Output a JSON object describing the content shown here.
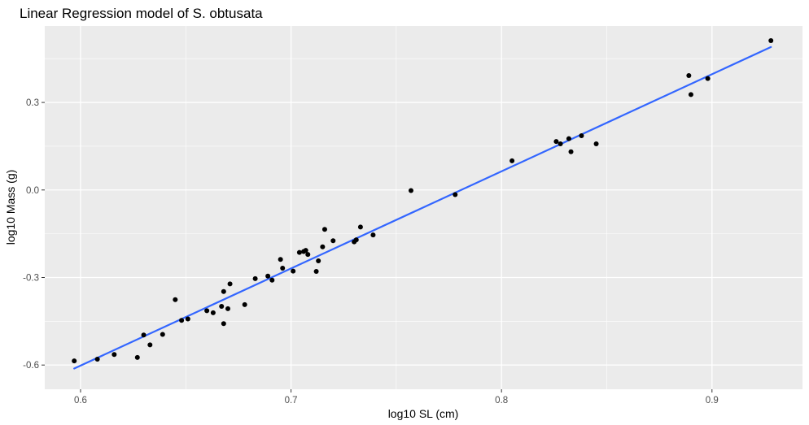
{
  "chart_data": {
    "type": "scatter",
    "title": "Linear Regression model of S. obtusata",
    "xlabel": "log10 SL (cm)",
    "ylabel": "log10 Mass (g)",
    "xlim": [
      0.583,
      0.943
    ],
    "ylim": [
      -0.683,
      0.562
    ],
    "x_ticks": [
      0.6,
      0.7,
      0.8,
      0.9
    ],
    "x_tick_labels": [
      "0.6",
      "0.7",
      "0.8",
      "0.9"
    ],
    "y_ticks": [
      -0.6,
      -0.3,
      0.0,
      0.3
    ],
    "y_tick_labels": [
      "-0.6",
      "-0.3",
      "0.0",
      "0.3"
    ],
    "grid": true,
    "background_color": "#ebebeb",
    "grid_color": "#ffffff",
    "point_color": "#000000",
    "line_color": "#3366ff",
    "points": [
      {
        "x": 0.597,
        "y": -0.586
      },
      {
        "x": 0.608,
        "y": -0.58
      },
      {
        "x": 0.616,
        "y": -0.564
      },
      {
        "x": 0.627,
        "y": -0.574
      },
      {
        "x": 0.63,
        "y": -0.497
      },
      {
        "x": 0.633,
        "y": -0.531
      },
      {
        "x": 0.639,
        "y": -0.495
      },
      {
        "x": 0.645,
        "y": -0.376
      },
      {
        "x": 0.648,
        "y": -0.447
      },
      {
        "x": 0.651,
        "y": -0.442
      },
      {
        "x": 0.66,
        "y": -0.414
      },
      {
        "x": 0.663,
        "y": -0.421
      },
      {
        "x": 0.667,
        "y": -0.399
      },
      {
        "x": 0.668,
        "y": -0.348
      },
      {
        "x": 0.668,
        "y": -0.458
      },
      {
        "x": 0.67,
        "y": -0.407
      },
      {
        "x": 0.671,
        "y": -0.322
      },
      {
        "x": 0.678,
        "y": -0.393
      },
      {
        "x": 0.683,
        "y": -0.304
      },
      {
        "x": 0.689,
        "y": -0.295
      },
      {
        "x": 0.691,
        "y": -0.309
      },
      {
        "x": 0.695,
        "y": -0.238
      },
      {
        "x": 0.696,
        "y": -0.268
      },
      {
        "x": 0.701,
        "y": -0.278
      },
      {
        "x": 0.704,
        "y": -0.214
      },
      {
        "x": 0.706,
        "y": -0.211
      },
      {
        "x": 0.707,
        "y": -0.207
      },
      {
        "x": 0.708,
        "y": -0.221
      },
      {
        "x": 0.712,
        "y": -0.279
      },
      {
        "x": 0.713,
        "y": -0.243
      },
      {
        "x": 0.715,
        "y": -0.195
      },
      {
        "x": 0.716,
        "y": -0.135
      },
      {
        "x": 0.72,
        "y": -0.174
      },
      {
        "x": 0.73,
        "y": -0.178
      },
      {
        "x": 0.731,
        "y": -0.171
      },
      {
        "x": 0.733,
        "y": -0.127
      },
      {
        "x": 0.739,
        "y": -0.154
      },
      {
        "x": 0.757,
        "y": -0.002
      },
      {
        "x": 0.778,
        "y": -0.016
      },
      {
        "x": 0.805,
        "y": 0.1
      },
      {
        "x": 0.826,
        "y": 0.166
      },
      {
        "x": 0.828,
        "y": 0.158
      },
      {
        "x": 0.832,
        "y": 0.176
      },
      {
        "x": 0.833,
        "y": 0.131
      },
      {
        "x": 0.838,
        "y": 0.186
      },
      {
        "x": 0.845,
        "y": 0.158
      },
      {
        "x": 0.889,
        "y": 0.392
      },
      {
        "x": 0.89,
        "y": 0.327
      },
      {
        "x": 0.898,
        "y": 0.382
      },
      {
        "x": 0.928,
        "y": 0.512
      }
    ],
    "regression_line": {
      "x": [
        0.597,
        0.928
      ],
      "y": [
        -0.612,
        0.49
      ]
    }
  }
}
